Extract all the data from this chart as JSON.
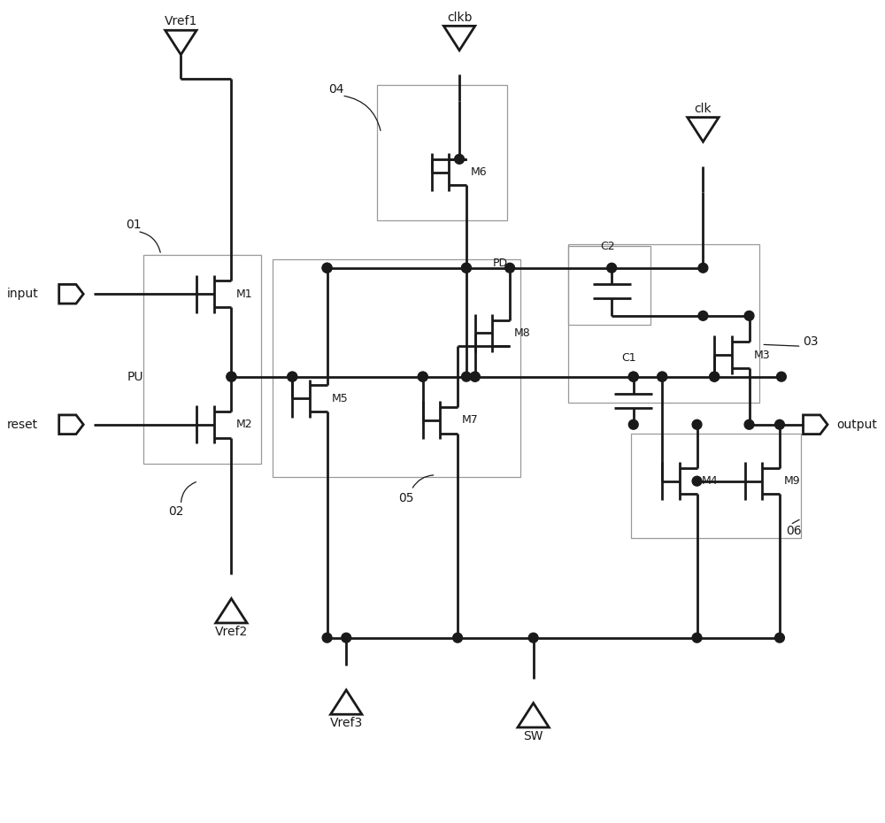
{
  "bg_color": "#ffffff",
  "line_color": "#1a1a1a",
  "lw": 2.0,
  "fig_width": 10.0,
  "fig_height": 9.3,
  "dpi": 100,
  "xlim": [
    0,
    10
  ],
  "ylim": [
    0,
    9.3
  ]
}
